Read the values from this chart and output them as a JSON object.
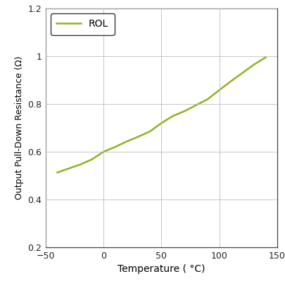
{
  "xlabel": "Temperature ( °C)",
  "ylabel": "Output Pull-Down Resistance (Ω)",
  "xlim": [
    -50,
    150
  ],
  "ylim": [
    0.2,
    1.2
  ],
  "xticks": [
    -50,
    0,
    50,
    100,
    150
  ],
  "yticks": [
    0.2,
    0.4,
    0.6,
    0.8,
    1.0,
    1.2
  ],
  "ytick_labels": [
    "0.2",
    "0.4",
    "0.6",
    "0.8",
    "1",
    "1.2"
  ],
  "line_color": "#8db320",
  "line_label": "ROL",
  "x_data": [
    -40,
    -30,
    -20,
    -10,
    0,
    10,
    20,
    30,
    40,
    50,
    60,
    70,
    80,
    90,
    100,
    110,
    120,
    130,
    140
  ],
  "y_data": [
    0.513,
    0.53,
    0.547,
    0.568,
    0.6,
    0.62,
    0.643,
    0.663,
    0.685,
    0.72,
    0.75,
    0.77,
    0.795,
    0.82,
    0.858,
    0.895,
    0.93,
    0.965,
    0.995
  ],
  "grid_color": "#bbbbbb",
  "background_color": "#ffffff",
  "line_width": 1.8,
  "tick_labelsize": 9,
  "xlabel_fontsize": 10,
  "ylabel_fontsize": 9
}
